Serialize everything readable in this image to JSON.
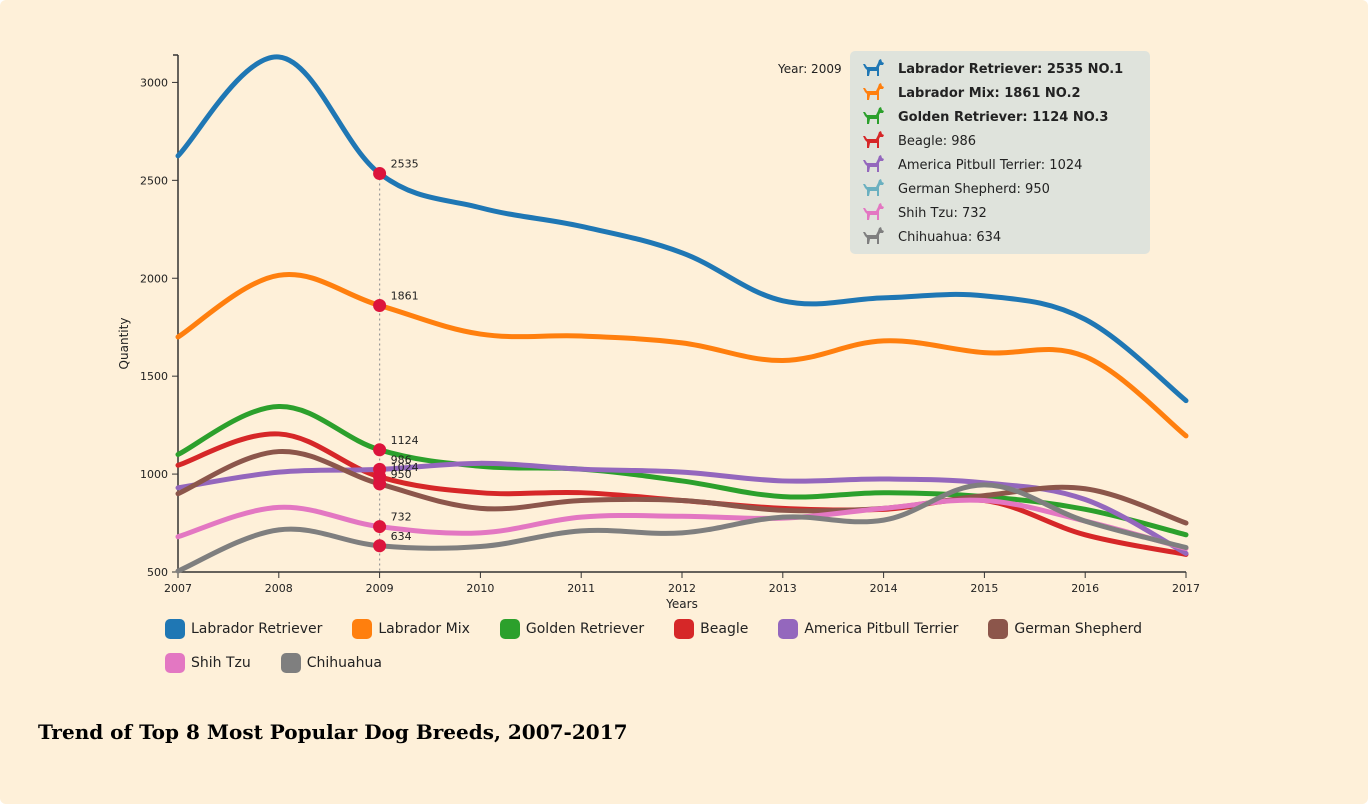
{
  "chart_data": {
    "type": "line",
    "title": "Trend of Top 8 Most Popular Dog Breeds, 2007-2017",
    "xlabel": "Years",
    "ylabel": "Quantity",
    "x": [
      2007,
      2008,
      2009,
      2010,
      2011,
      2012,
      2013,
      2014,
      2015,
      2016,
      2017
    ],
    "ylim": [
      500,
      3140
    ],
    "yticks": [
      500,
      1000,
      1500,
      2000,
      2500,
      3000
    ],
    "series": [
      {
        "name": "Labrador Retriever",
        "color": "#1f77b4",
        "values": [
          2625,
          3130,
          2535,
          2360,
          2265,
          2130,
          1885,
          1900,
          1910,
          1790,
          1375
        ]
      },
      {
        "name": "Labrador Mix",
        "color": "#ff7f0e",
        "values": [
          1700,
          2015,
          1861,
          1715,
          1705,
          1670,
          1580,
          1680,
          1620,
          1600,
          1195
        ]
      },
      {
        "name": "Golden Retriever",
        "color": "#2ca02c",
        "values": [
          1100,
          1345,
          1124,
          1040,
          1025,
          965,
          885,
          905,
          885,
          820,
          690
        ]
      },
      {
        "name": "Beagle",
        "color": "#d62728",
        "values": [
          1045,
          1205,
          986,
          905,
          905,
          865,
          825,
          820,
          865,
          690,
          590
        ]
      },
      {
        "name": "America Pitbull Terrier",
        "color": "#9467bd",
        "values": [
          930,
          1010,
          1024,
          1055,
          1025,
          1010,
          965,
          975,
          955,
          870,
          595
        ]
      },
      {
        "name": "German Shepherd",
        "color": "#8c564b",
        "values": [
          900,
          1115,
          950,
          825,
          865,
          865,
          815,
          825,
          890,
          925,
          750
        ]
      },
      {
        "name": "Shih Tzu",
        "color": "#e377c2",
        "values": [
          680,
          830,
          732,
          700,
          780,
          785,
          775,
          825,
          865,
          760,
          620
        ]
      },
      {
        "name": "Chihuahua",
        "color": "#7f7f7f",
        "values": [
          505,
          715,
          634,
          630,
          710,
          700,
          780,
          765,
          945,
          760,
          625
        ]
      }
    ],
    "highlight": {
      "year": 2009,
      "labels": [
        "2535",
        "1861",
        "1124",
        "1024",
        "986",
        "950",
        "732",
        "634"
      ]
    },
    "legend": "bottom"
  },
  "tooltip": {
    "year_label": "Year: 2009",
    "rows": [
      {
        "text": "Labrador Retriever: 2535 NO.1",
        "color": "#1f77b4",
        "bold": true,
        "icon": "dog-silhouette-icon"
      },
      {
        "text": "Labrador Mix: 1861 NO.2",
        "color": "#ff7f0e",
        "bold": true,
        "icon": "dog-silhouette-icon"
      },
      {
        "text": "Golden Retriever: 1124 NO.3",
        "color": "#2ca02c",
        "bold": true,
        "icon": "dog-silhouette-icon"
      },
      {
        "text": "Beagle: 986",
        "color": "#d62728",
        "bold": false,
        "icon": "dog-silhouette-icon"
      },
      {
        "text": "America Pitbull Terrier: 1024",
        "color": "#9467bd",
        "bold": false,
        "icon": "dog-silhouette-icon"
      },
      {
        "text": "German Shepherd: 950",
        "color": "#6ab0c0",
        "bold": false,
        "icon": "dog-silhouette-icon"
      },
      {
        "text": "Shih Tzu: 732",
        "color": "#e377c2",
        "bold": false,
        "icon": "dog-silhouette-icon"
      },
      {
        "text": "Chihuahua: 634",
        "color": "#7f7f7f",
        "bold": false,
        "icon": "dog-silhouette-icon"
      }
    ]
  },
  "marker_color": "#dc143c"
}
